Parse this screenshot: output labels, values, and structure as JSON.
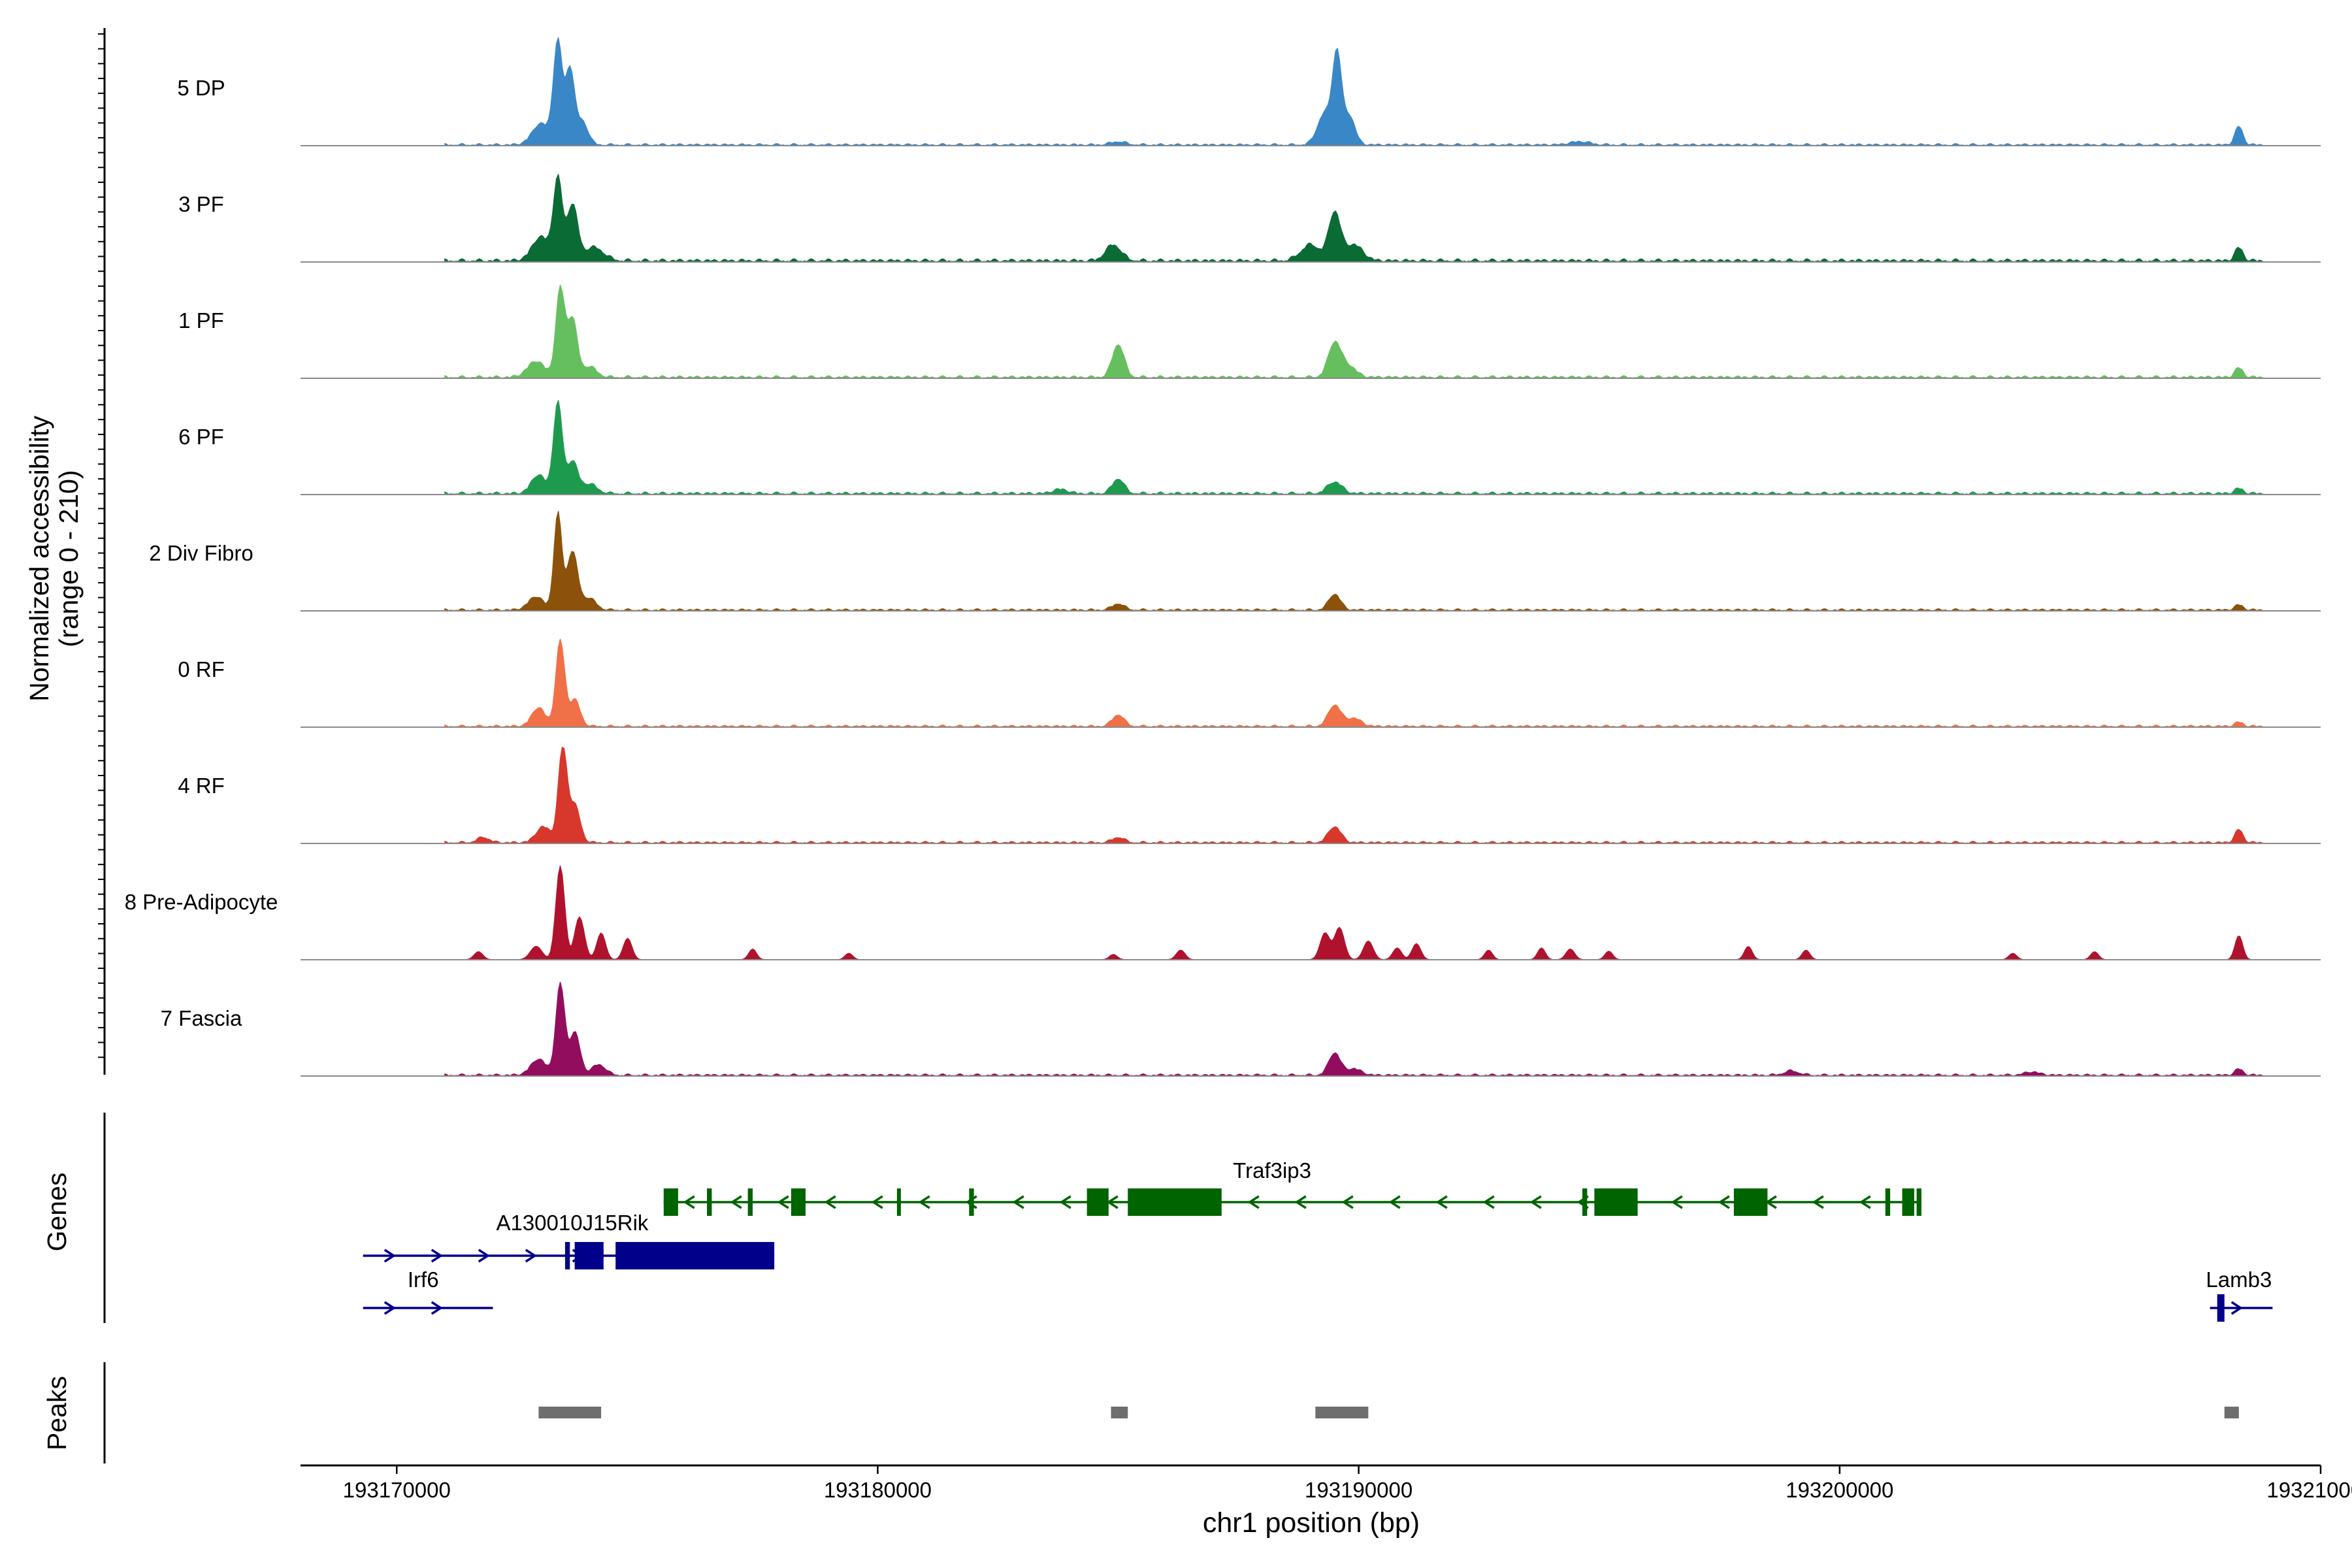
{
  "chart_data": {
    "type": "area",
    "subtype": "genome coverage track",
    "ylabel_lines": [
      "Normalized accessibility",
      "(range 0 - 210)"
    ],
    "y_range": [
      0,
      210
    ],
    "xlabel": "chr1 position (bp)",
    "x_range": [
      193168000,
      193210000
    ],
    "x_ticks": [
      193170000,
      193180000,
      193190000,
      193200000,
      193210000
    ],
    "x_tick_labels": [
      "193170000",
      "193180000",
      "193190000",
      "193200000",
      "193210000"
    ],
    "tracks": [
      {
        "name": "5 DP",
        "color": "#3A87C8",
        "baseline": 4,
        "peaks": [
          [
            193173000,
            40,
            180
          ],
          [
            193173350,
            190,
            90
          ],
          [
            193173600,
            140,
            90
          ],
          [
            193173850,
            45,
            120
          ],
          [
            193189300,
            60,
            150
          ],
          [
            193189550,
            160,
            90
          ],
          [
            193189800,
            55,
            120
          ],
          [
            193185000,
            6,
            150
          ],
          [
            193194600,
            6,
            200
          ],
          [
            193208300,
            35,
            80
          ]
        ]
      },
      {
        "name": "3 PF",
        "color": "#0B6B34",
        "baseline": 6,
        "peaks": [
          [
            193173000,
            45,
            180
          ],
          [
            193173350,
            150,
            90
          ],
          [
            193173650,
            105,
            110
          ],
          [
            193174100,
            25,
            200
          ],
          [
            193184900,
            30,
            160
          ],
          [
            193189000,
            30,
            200
          ],
          [
            193189500,
            90,
            120
          ],
          [
            193189900,
            30,
            180
          ],
          [
            193208300,
            25,
            80
          ]
        ]
      },
      {
        "name": "1 PF",
        "color": "#66BF5E",
        "baseline": 5,
        "peaks": [
          [
            193172900,
            30,
            180
          ],
          [
            193173400,
            165,
            90
          ],
          [
            193173650,
            110,
            100
          ],
          [
            193174000,
            20,
            150
          ],
          [
            193185000,
            62,
            120
          ],
          [
            193189500,
            65,
            130
          ],
          [
            193189800,
            20,
            150
          ],
          [
            193208300,
            18,
            80
          ]
        ]
      },
      {
        "name": "6 PF",
        "color": "#1E9A4F",
        "baseline": 5,
        "peaks": [
          [
            193172950,
            35,
            150
          ],
          [
            193173350,
            170,
            90
          ],
          [
            193173650,
            60,
            110
          ],
          [
            193174000,
            18,
            160
          ],
          [
            193185000,
            28,
            120
          ],
          [
            193183800,
            8,
            150
          ],
          [
            193189500,
            22,
            150
          ],
          [
            193208300,
            10,
            80
          ]
        ]
      },
      {
        "name": "2 Div Fibro",
        "color": "#8C510A",
        "baseline": 4,
        "peaks": [
          [
            193172900,
            25,
            160
          ],
          [
            193173350,
            180,
            80
          ],
          [
            193173650,
            110,
            110
          ],
          [
            193174000,
            22,
            140
          ],
          [
            193185000,
            12,
            120
          ],
          [
            193189500,
            30,
            120
          ],
          [
            193208300,
            10,
            80
          ]
        ]
      },
      {
        "name": "0 RF",
        "color": "#F07047",
        "baseline": 4,
        "peaks": [
          [
            193172950,
            35,
            140
          ],
          [
            193173400,
            160,
            90
          ],
          [
            193173700,
            50,
            110
          ],
          [
            193185000,
            22,
            120
          ],
          [
            193189500,
            40,
            130
          ],
          [
            193189900,
            15,
            150
          ],
          [
            193208300,
            8,
            80
          ]
        ]
      },
      {
        "name": "4 RF",
        "color": "#D8372C",
        "baseline": 4,
        "peaks": [
          [
            193171800,
            10,
            120
          ],
          [
            193173050,
            30,
            150
          ],
          [
            193173450,
            175,
            90
          ],
          [
            193173700,
            70,
            110
          ],
          [
            193185000,
            10,
            120
          ],
          [
            193189500,
            30,
            130
          ],
          [
            193208300,
            25,
            80
          ]
        ]
      },
      {
        "name": "8 Pre-Adipocyte",
        "color": "#B0122E",
        "baseline": 0,
        "peaks": [
          [
            193171700,
            15,
            90
          ],
          [
            193172900,
            25,
            120
          ],
          [
            193173400,
            175,
            90
          ],
          [
            193173800,
            80,
            100
          ],
          [
            193174250,
            50,
            90
          ],
          [
            193174800,
            40,
            90
          ],
          [
            193177400,
            20,
            80
          ],
          [
            193179400,
            12,
            80
          ],
          [
            193184900,
            10,
            80
          ],
          [
            193186300,
            18,
            90
          ],
          [
            193189300,
            50,
            100
          ],
          [
            193189600,
            60,
            100
          ],
          [
            193190200,
            35,
            100
          ],
          [
            193190800,
            22,
            90
          ],
          [
            193191200,
            30,
            90
          ],
          [
            193192700,
            18,
            80
          ],
          [
            193193800,
            22,
            80
          ],
          [
            193194400,
            20,
            90
          ],
          [
            193195200,
            16,
            80
          ],
          [
            193198100,
            25,
            80
          ],
          [
            193199300,
            18,
            80
          ],
          [
            193203600,
            12,
            80
          ],
          [
            193205300,
            15,
            80
          ],
          [
            193208300,
            45,
            80
          ]
        ]
      },
      {
        "name": "7 Fascia",
        "color": "#930D5E",
        "baseline": 4,
        "peaks": [
          [
            193172950,
            30,
            160
          ],
          [
            193173400,
            170,
            90
          ],
          [
            193173700,
            80,
            110
          ],
          [
            193174200,
            20,
            140
          ],
          [
            193189500,
            42,
            120
          ],
          [
            193189900,
            12,
            150
          ],
          [
            193199000,
            8,
            150
          ],
          [
            193204000,
            6,
            150
          ],
          [
            193208300,
            12,
            80
          ]
        ]
      }
    ],
    "genes_label": "Genes",
    "genes": [
      {
        "name": "Traf3ip3",
        "strand": "-",
        "color": "#006400",
        "start": 193175550,
        "end": 193201700,
        "row": 0,
        "label_x": 193188200,
        "exons": [
          [
            193175550,
            193175850
          ],
          [
            193176450,
            193176550
          ],
          [
            193177300,
            193177400
          ],
          [
            193178200,
            193178500
          ],
          [
            193180400,
            193180450
          ],
          [
            193181900,
            193182000
          ],
          [
            193184350,
            193184800
          ],
          [
            193185200,
            193187150
          ],
          [
            193194650,
            193194750
          ],
          [
            193194900,
            193195800
          ],
          [
            193197800,
            193198500
          ],
          [
            193200950,
            193201050
          ],
          [
            193201300,
            193201550
          ],
          [
            193201600,
            193201700
          ]
        ]
      },
      {
        "name": "A130010J15Rik",
        "strand": "+",
        "color": "#00008B",
        "start": 193169300,
        "end": 193177850,
        "row": 1,
        "label_x": 193173650,
        "exons": [
          [
            193173500,
            193173600
          ],
          [
            193173700,
            193174300
          ],
          [
            193174550,
            193177850
          ]
        ]
      },
      {
        "name": "Irf6",
        "strand": "+",
        "color": "#00008B",
        "start": 193169300,
        "end": 193172000,
        "row": 2,
        "label_x": 193170550,
        "exons": []
      },
      {
        "name": "Lamb3",
        "strand": "+",
        "color": "#00008B",
        "start": 193207700,
        "end": 193209000,
        "row": 2,
        "label_x": 193208300,
        "exons": [
          [
            193207850,
            193208000
          ]
        ]
      }
    ],
    "peaks_label": "Peaks",
    "peak_regions": [
      [
        193172950,
        193174250
      ],
      [
        193184850,
        193185200
      ],
      [
        193189100,
        193190200
      ],
      [
        193208000,
        193208300
      ]
    ]
  }
}
